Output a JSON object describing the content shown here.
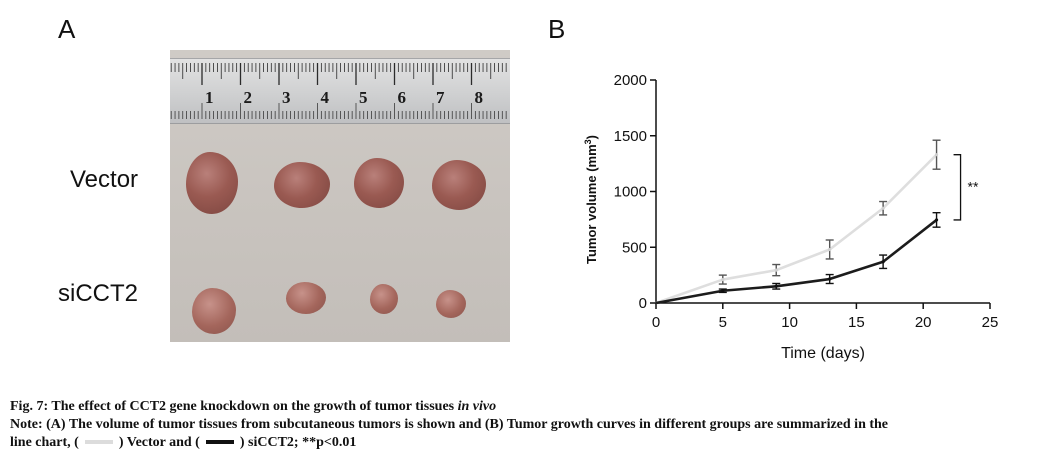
{
  "panels": {
    "a": "A",
    "b": "B"
  },
  "photo": {
    "ruler_numbers": [
      "1",
      "2",
      "3",
      "4",
      "5",
      "6",
      "7",
      "8"
    ],
    "group_labels": {
      "vector": "Vector",
      "sicct2": "siCCT2"
    }
  },
  "chart_data": {
    "type": "line",
    "xlabel": "Time (days)",
    "ylabel": "Tumor volume (mm3)",
    "ylabel_main": "Tumor volume (mm",
    "ylabel_sup": "3",
    "ylabel_close": ")",
    "xlim": [
      0,
      25
    ],
    "ylim": [
      0,
      2000
    ],
    "xticks": [
      0,
      5,
      10,
      15,
      20,
      25
    ],
    "yticks": [
      0,
      500,
      1000,
      1500,
      2000
    ],
    "x": [
      0,
      5,
      9,
      13,
      17,
      21
    ],
    "series": [
      {
        "name": "Vector",
        "color": "#dedede",
        "values": [
          0,
          210,
          295,
          480,
          850,
          1330
        ],
        "errors": [
          0,
          40,
          50,
          85,
          60,
          130
        ]
      },
      {
        "name": "siCCT2",
        "color": "#1c1c1c",
        "values": [
          0,
          110,
          150,
          215,
          370,
          745
        ],
        "errors": [
          0,
          15,
          25,
          40,
          60,
          65
        ]
      }
    ],
    "annotation": "**",
    "grid": false
  },
  "caption": {
    "title": "Fig. 7: The effect of CCT2 gene knockdown on the growth of tumor tissues ",
    "title_italic": "in vivo",
    "note_1": "Note: (A) The volume of tumor tissues from subcutaneous tumors is shown and (B) Tumor growth curves in different groups are summarized in the",
    "note_2a": "line chart, (",
    "note_2b": ") Vector and (",
    "note_2c": ") siCCT2; **p<0.01"
  }
}
